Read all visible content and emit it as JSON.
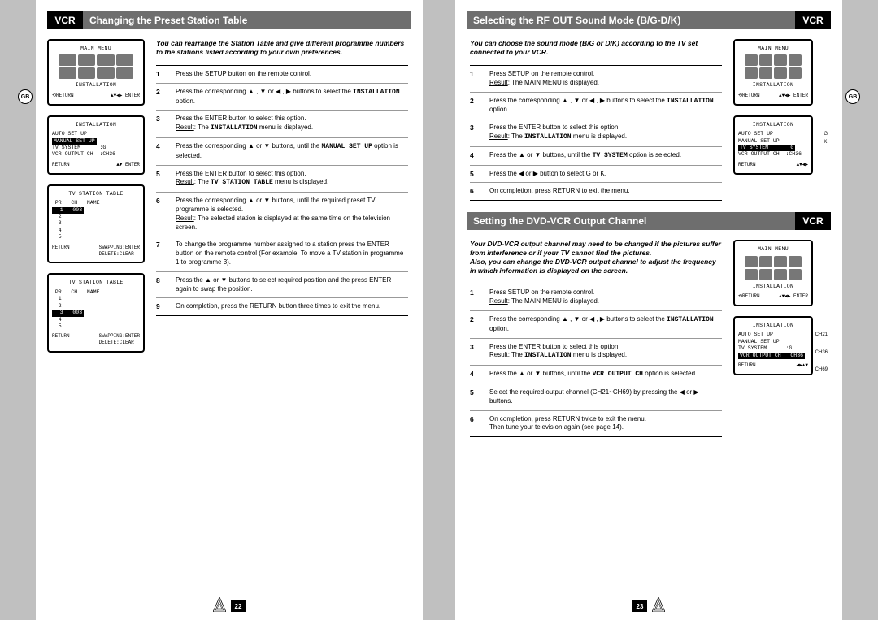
{
  "gb": "GB",
  "left": {
    "badge": "VCR",
    "title": "Changing the Preset Station Table",
    "intro": "You can rearrange the Station Table and give different programme numbers to the stations listed according to your own preferences.",
    "steps": [
      {
        "n": "1",
        "t": "Press the SETUP button on the remote control."
      },
      {
        "n": "2",
        "t": "Press the corresponding ▲ , ▼ or ◀ , ▶ buttons to select the <span class=mono>INSTALLATION</span> option."
      },
      {
        "n": "3",
        "t": "Press the ENTER button to select this option.<br><u>Result</u>: The <span class=mono>INSTALLATION</span> menu is displayed."
      },
      {
        "n": "4",
        "t": "Press the corresponding ▲ or ▼ buttons, until the <span class=mono>MANUAL SET UP</span> option is selected."
      },
      {
        "n": "5",
        "t": "Press the ENTER button to select this option.<br><u>Result</u>: The <span class=mono>TV STATION TABLE</span> menu is displayed."
      },
      {
        "n": "6",
        "t": "Press the corresponding ▲ or ▼ buttons, until the required preset TV programme is selected.<br><u>Result</u>: The selected station is displayed at the same time on the television screen."
      },
      {
        "n": "7",
        "t": "To change the programme number assigned to a station press the ENTER button on the remote control (For example; To move a TV station in programme 1 to programme 3)."
      },
      {
        "n": "8",
        "t": "Press the ▲ or ▼ buttons to select required position and the press ENTER again to swap the position."
      },
      {
        "n": "9",
        "t": "On completion, press the RETURN button three times to exit the menu."
      }
    ],
    "osd_main": {
      "title": "MAIN MENU",
      "footL": "INSTALLATION",
      "fret": "⟲RETURN",
      "fent": "▲▼◀▶  ENTER"
    },
    "osd_install": {
      "title": "INSTALLATION",
      "l1": "AUTO SET UP",
      "l2": "MANUAL SET UP",
      "l3": "TV SYSTEM      :G",
      "l4": "VCR OUTPUT CH  :CH36",
      "fret": "RETURN",
      "fent": "▲▼  ENTER"
    },
    "osd_tab1": {
      "title": "TV STATION TABLE",
      "hdr": " PR   CH   NAME",
      "r1": "  1   003",
      "r2": "  2",
      "r3": "  3",
      "r4": "  4",
      "r5": "  5",
      "f1": "SWAPPING:ENTER",
      "fret": "RETURN",
      "f2": "DELETE:CLEAR"
    },
    "osd_tab2": {
      "title": "TV STATION TABLE",
      "hdr": " PR   CH   NAME",
      "r1": "  1",
      "r2": "  2",
      "r3dark": "  3   003",
      "r4": "  4",
      "r5": "  5",
      "f1": "SWAPPING:ENTER",
      "fret": "RETURN",
      "f2": "DELETE:CLEAR"
    },
    "page": "22"
  },
  "right": {
    "sec1": {
      "badge": "VCR",
      "title": "Selecting the RF OUT Sound Mode (B/G-D/K)",
      "intro": "You can choose the sound mode (B/G or D/K) according to the TV set connected to your VCR.",
      "steps": [
        {
          "n": "1",
          "t": "Press SETUP on the remote control.<br><u>Result</u>: The MAIN MENU is displayed."
        },
        {
          "n": "2",
          "t": "Press the corresponding ▲ , ▼ or ◀ , ▶ buttons to select the <span class=mono>INSTALLATION</span> option."
        },
        {
          "n": "3",
          "t": "Press the ENTER button to select this option.<br><u>Result</u>: The <span class=mono>INSTALLATION</span> menu is displayed."
        },
        {
          "n": "4",
          "t": "Press the ▲ or ▼ buttons, until the <span class=mono>TV SYSTEM</span> option is selected."
        },
        {
          "n": "5",
          "t": "Press the ◀ or ▶ button to select G or K."
        },
        {
          "n": "6",
          "t": "On completion, press RETURN to exit the menu."
        }
      ],
      "osd_main": {
        "title": "MAIN MENU",
        "footL": "INSTALLATION",
        "fret": "⟲RETURN",
        "fent": "▲▼◀▶  ENTER"
      },
      "osd_install": {
        "title": "INSTALLATION",
        "l1": "AUTO SET UP",
        "l2": "MANUAL SET UP",
        "l3dark": "TV SYSTEM      :G",
        "l4": "VCR OUTPUT CH  :CH36",
        "fret": "RETURN",
        "fent": "▲▼◀▶",
        "rL1": "G",
        "rL2": "K"
      }
    },
    "sec2": {
      "badge": "VCR",
      "title": "Setting the DVD-VCR Output Channel",
      "intro": "Your DVD-VCR output channel may need to be changed if the pictures suffer from interference or if your TV cannot find the pictures.<br>Also, you can change the DVD-VCR output channel to adjust the frequency in which information is displayed on the screen.",
      "steps": [
        {
          "n": "1",
          "t": "Press SETUP on the remote control.<br><u>Result</u>: The MAIN MENU is displayed."
        },
        {
          "n": "2",
          "t": "Press the corresponding ▲ , ▼ or ◀ , ▶ buttons to select the <span class=mono>INSTALLATION</span> option."
        },
        {
          "n": "3",
          "t": "Press the ENTER button to select this option.<br><u>Result</u>: The <span class=mono>INSTALLATION</span> menu is displayed."
        },
        {
          "n": "4",
          "t": "Press the ▲ or ▼ buttons, until the <span class=mono>VCR OUTPUT CH</span> option is selected."
        },
        {
          "n": "5",
          "t": "Select the required output channel (CH21~CH69) by pressing the ◀ or ▶ buttons."
        },
        {
          "n": "6",
          "t": "On completion, press RETURN twice to exit the menu.<br>Then tune your television again (see page 14)."
        }
      ],
      "osd_main": {
        "title": "MAIN MENU",
        "footL": "INSTALLATION",
        "fret": "⟲RETURN",
        "fent": "▲▼◀▶  ENTER"
      },
      "osd_install": {
        "title": "INSTALLATION",
        "l1": "AUTO SET UP",
        "l2": "MANUAL SET UP",
        "l3": "TV SYSTEM      :G",
        "l4dark": "VCR OUTPUT CH  :CH36",
        "fret": "RETURN",
        "fent": "◀▶▲▼",
        "rL1": "CH21",
        "rL2": "CH36",
        "rL3": "CH69"
      }
    },
    "page": "23"
  }
}
